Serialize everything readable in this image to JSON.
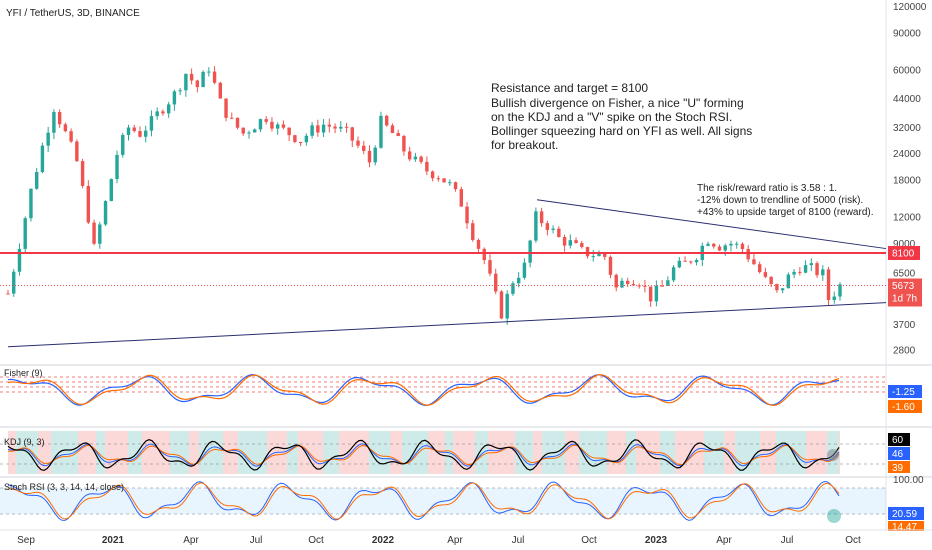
{
  "header": {
    "title": "YFI / TetherUS, 3D, BINANCE"
  },
  "notes": {
    "main": [
      "Resistance and target = 8100",
      "Bullish divergence on Fisher, a nice \"U\" forming",
      "on the KDJ and a \"V\" spike on the Stoch RSI.",
      "Bollinger squeezing hard on YFI as well. All signs",
      "for breakout."
    ],
    "risk": [
      "The risk/reward ratio is 3.58 : 1.",
      "-12% down to trendline of 5000 (risk).",
      "+43% to upside target of 8100 (reward)."
    ]
  },
  "price_tags": {
    "resistance": "8100",
    "last": "5673",
    "countdown": "1d 7h"
  },
  "indicators": {
    "fisher": {
      "title": "Fisher (9)",
      "v1": "-1.25",
      "v2": "-1.60"
    },
    "kdj": {
      "title": "KDJ (9, 3)",
      "v1": "60",
      "v2": "46",
      "v3": "39"
    },
    "stoch": {
      "title": "Stoch RSI (3, 3, 14, 14, close)",
      "top": "100.00",
      "v1": "20.59",
      "v2": "14.47"
    }
  },
  "colors": {
    "up": "#26a69a",
    "down": "#ef5350",
    "resistance": "#f23645",
    "trend": "#2a2e6e",
    "fisher1": "#2962ff",
    "fisher2": "#ff6d00"
  },
  "chart_data": {
    "type": "candlestick",
    "title": "YFI / TetherUS, 3D, BINANCE",
    "y_scale": "log",
    "y_ticks": [
      "120000",
      "90000",
      "60000",
      "44000",
      "32000",
      "24000",
      "18000",
      "12000",
      "9000",
      "6500",
      "3700",
      "2800"
    ],
    "x_ticks": [
      {
        "label": "Sep",
        "bold": false
      },
      {
        "label": "2021",
        "bold": true
      },
      {
        "label": "Apr",
        "bold": false
      },
      {
        "label": "Jul",
        "bold": false
      },
      {
        "label": "Oct",
        "bold": false
      },
      {
        "label": "2022",
        "bold": true
      },
      {
        "label": "Apr",
        "bold": false
      },
      {
        "label": "Jul",
        "bold": false
      },
      {
        "label": "Oct",
        "bold": false
      },
      {
        "label": "2023",
        "bold": true
      },
      {
        "label": "Apr",
        "bold": false
      },
      {
        "label": "Jul",
        "bold": false
      },
      {
        "label": "Oct",
        "bold": false
      }
    ],
    "resistance": 8100,
    "last_price": 5673,
    "trendlines": [
      {
        "name": "upper",
        "from": 14500,
        "to": 8500
      },
      {
        "name": "lower",
        "from": 2900,
        "to": 4700
      }
    ],
    "close_path": [
      {
        "t": 0,
        "v": 5200
      },
      {
        "t": 2,
        "v": 9000
      },
      {
        "t": 4,
        "v": 16000
      },
      {
        "t": 6,
        "v": 26000
      },
      {
        "t": 8,
        "v": 40000
      },
      {
        "t": 10,
        "v": 30000
      },
      {
        "t": 12,
        "v": 22000
      },
      {
        "t": 14,
        "v": 12000
      },
      {
        "t": 15,
        "v": 8500
      },
      {
        "t": 17,
        "v": 14000
      },
      {
        "t": 19,
        "v": 24000
      },
      {
        "t": 21,
        "v": 32000
      },
      {
        "t": 23,
        "v": 30000
      },
      {
        "t": 25,
        "v": 34000
      },
      {
        "t": 27,
        "v": 40000
      },
      {
        "t": 29,
        "v": 46000
      },
      {
        "t": 31,
        "v": 58000
      },
      {
        "t": 33,
        "v": 50000
      },
      {
        "t": 35,
        "v": 62000
      },
      {
        "t": 37,
        "v": 42000
      },
      {
        "t": 39,
        "v": 34000
      },
      {
        "t": 41,
        "v": 30000
      },
      {
        "t": 43,
        "v": 33000
      },
      {
        "t": 45,
        "v": 36000
      },
      {
        "t": 47,
        "v": 32000
      },
      {
        "t": 49,
        "v": 30000
      },
      {
        "t": 51,
        "v": 28000
      },
      {
        "t": 53,
        "v": 31000
      },
      {
        "t": 55,
        "v": 33000
      },
      {
        "t": 57,
        "v": 32000
      },
      {
        "t": 59,
        "v": 30000
      },
      {
        "t": 61,
        "v": 26000
      },
      {
        "t": 63,
        "v": 22000
      },
      {
        "t": 65,
        "v": 34000
      },
      {
        "t": 67,
        "v": 30000
      },
      {
        "t": 69,
        "v": 25000
      },
      {
        "t": 71,
        "v": 22000
      },
      {
        "t": 73,
        "v": 20000
      },
      {
        "t": 75,
        "v": 19000
      },
      {
        "t": 77,
        "v": 17000
      },
      {
        "t": 79,
        "v": 14000
      },
      {
        "t": 81,
        "v": 10000
      },
      {
        "t": 83,
        "v": 7500
      },
      {
        "t": 85,
        "v": 5000
      },
      {
        "t": 86,
        "v": 4200
      },
      {
        "t": 88,
        "v": 6000
      },
      {
        "t": 90,
        "v": 7000
      },
      {
        "t": 92,
        "v": 12000
      },
      {
        "t": 94,
        "v": 11000
      },
      {
        "t": 96,
        "v": 9500
      },
      {
        "t": 98,
        "v": 9000
      },
      {
        "t": 100,
        "v": 8200
      },
      {
        "t": 102,
        "v": 8000
      },
      {
        "t": 104,
        "v": 7800
      },
      {
        "t": 106,
        "v": 5500
      },
      {
        "t": 108,
        "v": 6200
      },
      {
        "t": 110,
        "v": 6000
      },
      {
        "t": 112,
        "v": 5000
      },
      {
        "t": 114,
        "v": 5600
      },
      {
        "t": 116,
        "v": 6800
      },
      {
        "t": 118,
        "v": 7200
      },
      {
        "t": 120,
        "v": 8000
      },
      {
        "t": 122,
        "v": 9500
      },
      {
        "t": 124,
        "v": 8800
      },
      {
        "t": 126,
        "v": 9000
      },
      {
        "t": 128,
        "v": 8500
      },
      {
        "t": 130,
        "v": 7200
      },
      {
        "t": 132,
        "v": 6000
      },
      {
        "t": 134,
        "v": 5200
      },
      {
        "t": 136,
        "v": 6200
      },
      {
        "t": 138,
        "v": 7000
      },
      {
        "t": 140,
        "v": 6800
      },
      {
        "t": 142,
        "v": 6400
      },
      {
        "t": 143,
        "v": 4900
      },
      {
        "t": 145,
        "v": 5673
      }
    ]
  }
}
